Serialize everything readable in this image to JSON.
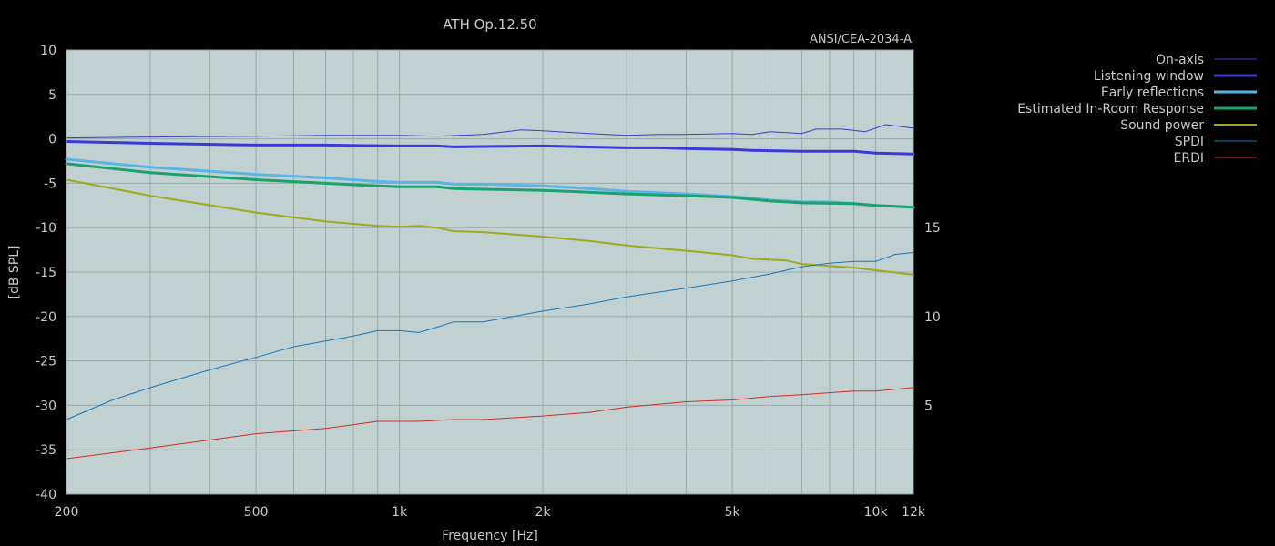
{
  "chart_data": {
    "type": "line",
    "title": "ATH Op.12.50",
    "subtitle": "ANSI/CEA-2034-A",
    "xlabel": "Frequency [Hz]",
    "ylabel": "[dB SPL]",
    "x_scale": "log",
    "xlim": [
      200,
      12000
    ],
    "ylim": [
      -40,
      10
    ],
    "y2lim": [
      0,
      25
    ],
    "grid": true,
    "plot_background": "#c1d1d1",
    "legend_placement": "top-right, outside plot",
    "x_ticks": [
      {
        "value": 200,
        "label": "200"
      },
      {
        "value": 500,
        "label": "500"
      },
      {
        "value": 1000,
        "label": "1k"
      },
      {
        "value": 2000,
        "label": "2k"
      },
      {
        "value": 5000,
        "label": "5k"
      },
      {
        "value": 10000,
        "label": "10k"
      },
      {
        "value": 12000,
        "label": "12k"
      }
    ],
    "y_ticks": [
      {
        "value": 10,
        "label": "10"
      },
      {
        "value": 5,
        "label": "5"
      },
      {
        "value": 0,
        "label": "0"
      },
      {
        "value": -5,
        "label": "-5"
      },
      {
        "value": -10,
        "label": "-10"
      },
      {
        "value": -15,
        "label": "-15"
      },
      {
        "value": -20,
        "label": "-20"
      },
      {
        "value": -25,
        "label": "-25"
      },
      {
        "value": -30,
        "label": "-30"
      },
      {
        "value": -35,
        "label": "-35"
      },
      {
        "value": -40,
        "label": "-40"
      }
    ],
    "y2_ticks": [
      {
        "value": 15,
        "label": "15"
      },
      {
        "value": 10,
        "label": "10"
      },
      {
        "value": 5,
        "label": "5"
      }
    ],
    "series": [
      {
        "name": "On-axis",
        "color": "#3c3cd2",
        "width": 1,
        "axis": "left",
        "points": [
          [
            200,
            0.1
          ],
          [
            300,
            0.2
          ],
          [
            500,
            0.3
          ],
          [
            700,
            0.4
          ],
          [
            1000,
            0.4
          ],
          [
            1200,
            0.3
          ],
          [
            1500,
            0.5
          ],
          [
            1800,
            1.0
          ],
          [
            2000,
            0.9
          ],
          [
            2500,
            0.6
          ],
          [
            3000,
            0.4
          ],
          [
            3500,
            0.5
          ],
          [
            4000,
            0.5
          ],
          [
            5000,
            0.6
          ],
          [
            5500,
            0.5
          ],
          [
            6000,
            0.8
          ],
          [
            7000,
            0.6
          ],
          [
            7500,
            1.1
          ],
          [
            8500,
            1.1
          ],
          [
            9500,
            0.8
          ],
          [
            10500,
            1.6
          ],
          [
            12000,
            1.2
          ]
        ]
      },
      {
        "name": "Listening window",
        "color": "#3a3ad9",
        "width": 3,
        "axis": "left",
        "points": [
          [
            200,
            -0.3
          ],
          [
            300,
            -0.5
          ],
          [
            500,
            -0.7
          ],
          [
            700,
            -0.7
          ],
          [
            1000,
            -0.8
          ],
          [
            1200,
            -0.8
          ],
          [
            1300,
            -0.9
          ],
          [
            2000,
            -0.8
          ],
          [
            3000,
            -1.0
          ],
          [
            3500,
            -1.0
          ],
          [
            4000,
            -1.1
          ],
          [
            5000,
            -1.2
          ],
          [
            5500,
            -1.3
          ],
          [
            7000,
            -1.4
          ],
          [
            9000,
            -1.4
          ],
          [
            10000,
            -1.6
          ],
          [
            12000,
            -1.7
          ]
        ]
      },
      {
        "name": "Early reflections",
        "color": "#5ab4e6",
        "width": 3,
        "axis": "left",
        "points": [
          [
            200,
            -2.3
          ],
          [
            300,
            -3.2
          ],
          [
            500,
            -4.0
          ],
          [
            700,
            -4.4
          ],
          [
            900,
            -4.8
          ],
          [
            1000,
            -4.9
          ],
          [
            1200,
            -4.9
          ],
          [
            1300,
            -5.1
          ],
          [
            1500,
            -5.1
          ],
          [
            2000,
            -5.3
          ],
          [
            2500,
            -5.6
          ],
          [
            3000,
            -5.9
          ],
          [
            4000,
            -6.2
          ],
          [
            5000,
            -6.5
          ],
          [
            6000,
            -6.9
          ],
          [
            7000,
            -7.1
          ],
          [
            8000,
            -7.1
          ],
          [
            9000,
            -7.3
          ],
          [
            10000,
            -7.5
          ],
          [
            12000,
            -7.7
          ]
        ]
      },
      {
        "name": "Estimated In-Room Response",
        "color": "#19a26e",
        "width": 3,
        "axis": "left",
        "points": [
          [
            200,
            -2.8
          ],
          [
            300,
            -3.8
          ],
          [
            500,
            -4.6
          ],
          [
            700,
            -5.0
          ],
          [
            900,
            -5.3
          ],
          [
            1000,
            -5.4
          ],
          [
            1200,
            -5.4
          ],
          [
            1300,
            -5.6
          ],
          [
            2000,
            -5.8
          ],
          [
            2500,
            -6.0
          ],
          [
            3000,
            -6.2
          ],
          [
            4000,
            -6.4
          ],
          [
            5000,
            -6.6
          ],
          [
            6000,
            -7.0
          ],
          [
            7000,
            -7.2
          ],
          [
            9000,
            -7.3
          ],
          [
            10000,
            -7.5
          ],
          [
            12000,
            -7.7
          ]
        ]
      },
      {
        "name": "Sound power",
        "color": "#a2a81c",
        "width": 2,
        "axis": "left",
        "points": [
          [
            200,
            -4.6
          ],
          [
            300,
            -6.4
          ],
          [
            500,
            -8.3
          ],
          [
            700,
            -9.3
          ],
          [
            900,
            -9.8
          ],
          [
            1000,
            -9.9
          ],
          [
            1100,
            -9.8
          ],
          [
            1200,
            -10.0
          ],
          [
            1300,
            -10.4
          ],
          [
            1500,
            -10.5
          ],
          [
            2000,
            -11.0
          ],
          [
            2500,
            -11.5
          ],
          [
            3000,
            -12.0
          ],
          [
            4000,
            -12.6
          ],
          [
            5000,
            -13.1
          ],
          [
            5500,
            -13.5
          ],
          [
            6500,
            -13.7
          ],
          [
            7000,
            -14.1
          ],
          [
            8000,
            -14.3
          ],
          [
            9000,
            -14.5
          ],
          [
            10000,
            -14.8
          ],
          [
            12000,
            -15.3
          ]
        ]
      },
      {
        "name": "SPDI",
        "color": "#1878b9",
        "width": 1,
        "axis": "right",
        "points": [
          [
            200,
            4.2
          ],
          [
            250,
            5.3
          ],
          [
            300,
            6.0
          ],
          [
            400,
            7.0
          ],
          [
            500,
            7.7
          ],
          [
            600,
            8.3
          ],
          [
            800,
            8.9
          ],
          [
            900,
            9.2
          ],
          [
            1000,
            9.2
          ],
          [
            1100,
            9.1
          ],
          [
            1200,
            9.4
          ],
          [
            1300,
            9.7
          ],
          [
            1500,
            9.7
          ],
          [
            2000,
            10.3
          ],
          [
            2500,
            10.7
          ],
          [
            3000,
            11.1
          ],
          [
            4000,
            11.6
          ],
          [
            5000,
            12.0
          ],
          [
            6000,
            12.4
          ],
          [
            7000,
            12.8
          ],
          [
            8000,
            13.0
          ],
          [
            9000,
            13.1
          ],
          [
            10000,
            13.1
          ],
          [
            11000,
            13.5
          ],
          [
            12000,
            13.6
          ]
        ]
      },
      {
        "name": "ERDI",
        "color": "#d22d22",
        "width": 1,
        "axis": "right",
        "points": [
          [
            200,
            2.0
          ],
          [
            300,
            2.6
          ],
          [
            500,
            3.4
          ],
          [
            700,
            3.7
          ],
          [
            900,
            4.1
          ],
          [
            1000,
            4.1
          ],
          [
            1100,
            4.1
          ],
          [
            1300,
            4.2
          ],
          [
            1500,
            4.2
          ],
          [
            2000,
            4.4
          ],
          [
            2500,
            4.6
          ],
          [
            3000,
            4.9
          ],
          [
            4000,
            5.2
          ],
          [
            5000,
            5.3
          ],
          [
            6000,
            5.5
          ],
          [
            7000,
            5.6
          ],
          [
            9000,
            5.8
          ],
          [
            10000,
            5.8
          ],
          [
            12000,
            6.0
          ]
        ]
      }
    ]
  }
}
